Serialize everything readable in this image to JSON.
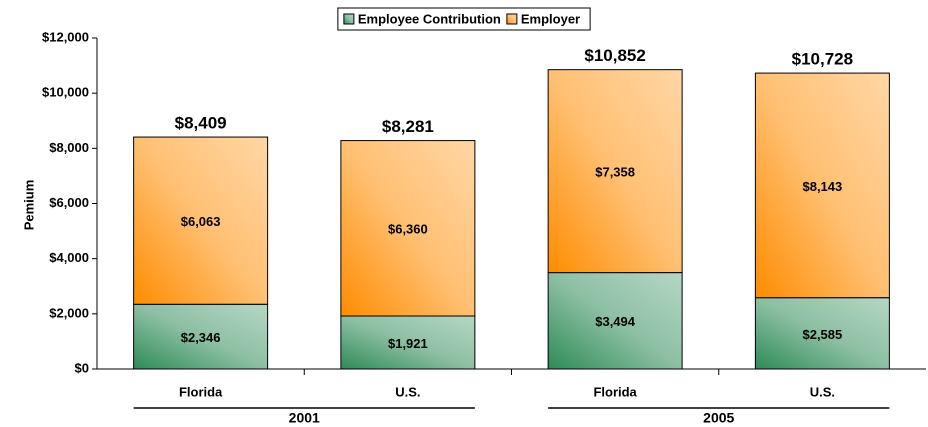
{
  "chart_data": {
    "type": "stacked_bar",
    "y_label": "Pemium",
    "categories": [
      "Florida",
      "U.S.",
      "Florida",
      "U.S."
    ],
    "groups": [
      "2001",
      "2005"
    ],
    "series": [
      {
        "name": "Employee Contribution",
        "color": "#2e8b57",
        "values": [
          2346,
          1921,
          3494,
          2585
        ],
        "value_labels": [
          "$2,346",
          "$1,921",
          "$3,494",
          "$2,585"
        ]
      },
      {
        "name": "Employer",
        "color": "#ff8c00",
        "values": [
          6063,
          6360,
          7358,
          8143
        ],
        "value_labels": [
          "$6,063",
          "$6,360",
          "$7,358",
          "$8,143"
        ]
      }
    ],
    "totals": [
      8409,
      8281,
      10852,
      10728
    ],
    "total_labels": [
      "$8,409",
      "$8,281",
      "$10,852",
      "$10,728"
    ],
    "ylim": [
      0,
      12000
    ],
    "yticks": [
      {
        "value": 0,
        "label": "$0"
      },
      {
        "value": 2000,
        "label": "$2,000"
      },
      {
        "value": 4000,
        "label": "$4,000"
      },
      {
        "value": 6000,
        "label": "$6,000"
      },
      {
        "value": 8000,
        "label": "$8,000"
      },
      {
        "value": 10000,
        "label": "$10,000"
      },
      {
        "value": 12000,
        "label": "$12,000"
      }
    ],
    "legend": "top"
  }
}
